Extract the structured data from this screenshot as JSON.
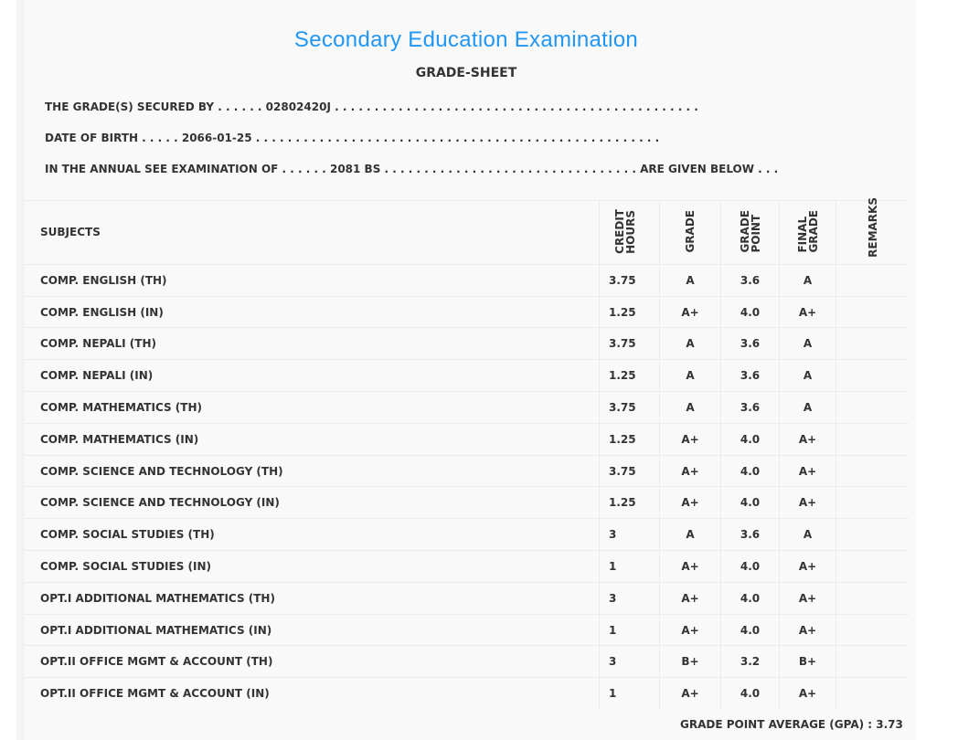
{
  "header": {
    "title": "Secondary Education Examination",
    "subtitle": "GRADE-SHEET"
  },
  "info": {
    "secured_by": "THE GRADE(S) SECURED BY . . . . . . 02802420J . . . . . . . . . . . . . . . . . . . . . . . . . . . . . . . . . . . . . . . . . . . . . .",
    "dob": "DATE OF BIRTH . . . . . 2066-01-25 . . . . . . . . . . . . . . . . . . . . . . . . . . . . . . . . . . . . . . . . . . . . . . . . . . .",
    "exam": "IN THE ANNUAL SEE EXAMINATION OF . . . . . . 2081 BS . . . . . . . . . . . . . . . . . . . . . . . . . . . . . . . . ARE GIVEN BELOW . . ."
  },
  "columns": {
    "subjects": "SUBJECTS",
    "credit": [
      "CREDIT",
      "HOURS"
    ],
    "grade": "GRADE",
    "grade_point": [
      "GRADE",
      "POINT"
    ],
    "final_grade": [
      "FINAL",
      "GRADE"
    ],
    "remarks": "REMARKS"
  },
  "rows": [
    {
      "subject": "COMP. ENGLISH (TH)",
      "credit": "3.75",
      "grade": "A",
      "gp": "3.6",
      "final": "A"
    },
    {
      "subject": "COMP. ENGLISH (IN)",
      "credit": "1.25",
      "grade": "A+",
      "gp": "4.0",
      "final": "A+"
    },
    {
      "subject": "COMP. NEPALI (TH)",
      "credit": "3.75",
      "grade": "A",
      "gp": "3.6",
      "final": "A"
    },
    {
      "subject": "COMP. NEPALI (IN)",
      "credit": "1.25",
      "grade": "A",
      "gp": "3.6",
      "final": "A"
    },
    {
      "subject": "COMP. MATHEMATICS (TH)",
      "credit": "3.75",
      "grade": "A",
      "gp": "3.6",
      "final": "A"
    },
    {
      "subject": "COMP. MATHEMATICS (IN)",
      "credit": "1.25",
      "grade": "A+",
      "gp": "4.0",
      "final": "A+"
    },
    {
      "subject": "COMP. SCIENCE AND TECHNOLOGY (TH)",
      "credit": "3.75",
      "grade": "A+",
      "gp": "4.0",
      "final": "A+"
    },
    {
      "subject": "COMP. SCIENCE AND TECHNOLOGY (IN)",
      "credit": "1.25",
      "grade": "A+",
      "gp": "4.0",
      "final": "A+"
    },
    {
      "subject": "COMP. SOCIAL STUDIES (TH)",
      "credit": "3",
      "grade": "A",
      "gp": "3.6",
      "final": "A"
    },
    {
      "subject": "COMP. SOCIAL STUDIES (IN)",
      "credit": "1",
      "grade": "A+",
      "gp": "4.0",
      "final": "A+"
    },
    {
      "subject": "OPT.I ADDITIONAL MATHEMATICS (TH)",
      "credit": "3",
      "grade": "A+",
      "gp": "4.0",
      "final": "A+"
    },
    {
      "subject": "OPT.I ADDITIONAL MATHEMATICS (IN)",
      "credit": "1",
      "grade": "A+",
      "gp": "4.0",
      "final": "A+"
    },
    {
      "subject": "OPT.II OFFICE MGMT & ACCOUNT (TH)",
      "credit": "3",
      "grade": "B+",
      "gp": "3.2",
      "final": "B+"
    },
    {
      "subject": "OPT.II OFFICE MGMT & ACCOUNT (IN)",
      "credit": "1",
      "grade": "A+",
      "gp": "4.0",
      "final": "A+"
    }
  ],
  "gpa": "GRADE POINT AVERAGE (GPA) : 3.73"
}
